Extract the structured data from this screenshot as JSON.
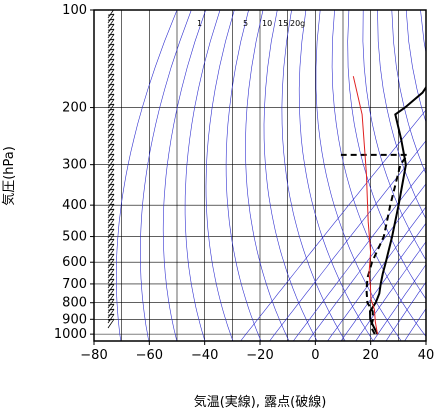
{
  "chart_data": {
    "type": "line",
    "xlabel": "気温(実線), 露点(破線)",
    "ylabel": "気圧(hPa)",
    "xlim": [
      -80,
      40
    ],
    "ylim": [
      1050,
      100
    ],
    "y_scale": "log",
    "grid": true,
    "x_ticks": [
      -80,
      -60,
      -40,
      -20,
      0,
      20,
      40
    ],
    "y_ticks": [
      100,
      200,
      300,
      400,
      500,
      600,
      700,
      800,
      900,
      1000
    ],
    "mixing_ratio_labels": [
      "1",
      "5",
      "10",
      "15",
      "20g"
    ],
    "colors": {
      "isotherm": "#000000",
      "dry_adiabat": "#3030d0",
      "mixing_ratio": "#3030d0",
      "parcel": "#e02020",
      "wind_barb": "#000000"
    },
    "series": [
      {
        "role": "temperature",
        "style": "solid",
        "color": "#000000",
        "x": [
          20,
          16,
          12,
          9,
          8,
          6,
          3,
          0,
          -3,
          -10,
          -19,
          -31,
          -42,
          -53,
          -52,
          -51,
          -53,
          -56,
          -60,
          -64,
          -66,
          -67
        ],
        "y": [
          1000,
          950,
          900,
          850,
          800,
          750,
          700,
          650,
          600,
          500,
          400,
          300,
          250,
          210,
          200,
          180,
          160,
          140,
          125,
          110,
          103,
          100
        ]
      },
      {
        "role": "dewpoint",
        "style": "dashed",
        "color": "#000000",
        "x": [
          19,
          15,
          13,
          10,
          5,
          0,
          -4,
          -8,
          -13,
          -22,
          -33,
          -34,
          -58
        ],
        "y": [
          1000,
          950,
          900,
          850,
          800,
          730,
          670,
          600,
          500,
          400,
          300,
          280,
          280
        ]
      },
      {
        "role": "parcel",
        "style": "solid",
        "color": "#e02020",
        "x": [
          20,
          15,
          10,
          5,
          0,
          -5,
          -12,
          -24,
          -42,
          -65,
          -82
        ],
        "y": [
          1000,
          920,
          840,
          780,
          710,
          650,
          560,
          450,
          320,
          210,
          160
        ]
      }
    ]
  }
}
